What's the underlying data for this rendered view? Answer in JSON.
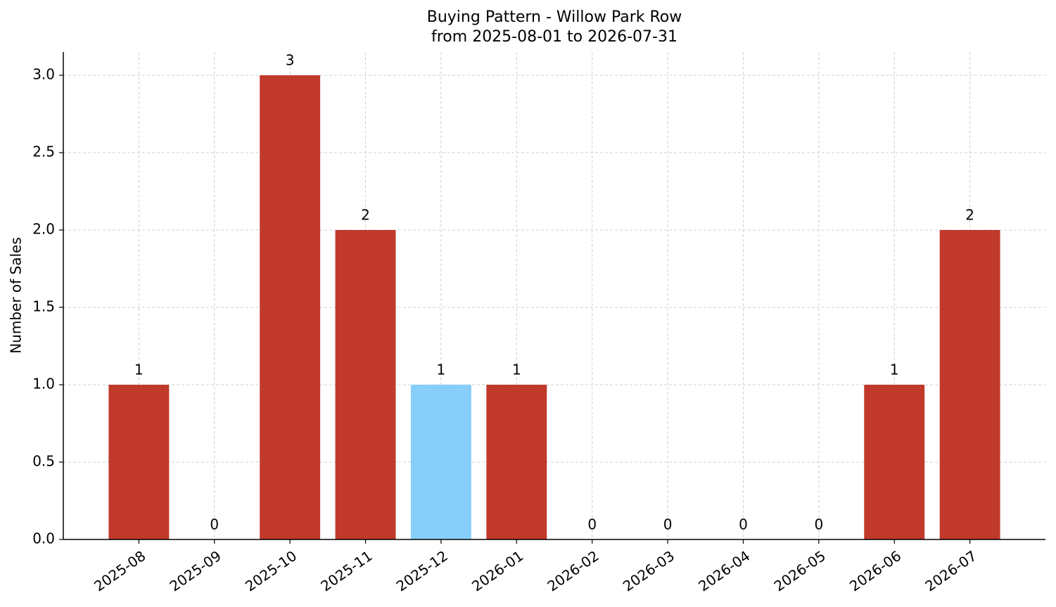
{
  "chart_data": {
    "type": "bar",
    "title": "Buying Pattern - Willow Park Row",
    "subtitle": "from 2025-08-01 to 2026-07-31",
    "y_label": "Number of Sales",
    "categories": [
      "2025-08",
      "2025-09",
      "2025-10",
      "2025-11",
      "2025-12",
      "2026-01",
      "2026-02",
      "2026-03",
      "2026-04",
      "2026-05",
      "2026-06",
      "2026-07"
    ],
    "values": [
      1,
      0,
      3,
      2,
      1,
      1,
      0,
      0,
      0,
      0,
      1,
      2
    ],
    "colors": [
      "#c0392b",
      "#c0392b",
      "#c0392b",
      "#c0392b",
      "#87cefa",
      "#c0392b",
      "#c0392b",
      "#c0392b",
      "#c0392b",
      "#c0392b",
      "#c0392b",
      "#c0392b"
    ],
    "ylim": [
      0,
      3.15
    ],
    "yticks": [
      {
        "value": 0,
        "label": "0.0"
      },
      {
        "value": 0.5,
        "label": "0.5"
      },
      {
        "value": 1,
        "label": "1.0"
      },
      {
        "value": 1.5,
        "label": "1.5"
      },
      {
        "value": 2,
        "label": "2.0"
      },
      {
        "value": 2.5,
        "label": "2.5"
      },
      {
        "value": 3,
        "label": "3.0"
      }
    ],
    "grid": true
  }
}
